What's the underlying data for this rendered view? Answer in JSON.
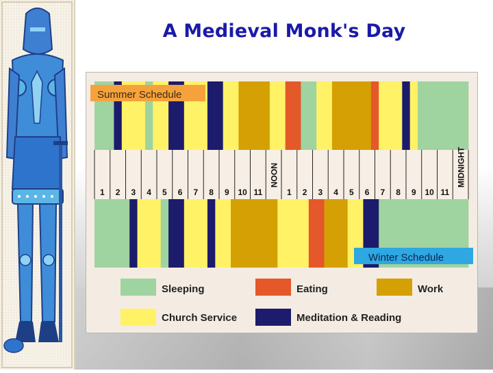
{
  "title": "A Medieval Monk's Day",
  "colors": {
    "sleeping": "#9fd3a0",
    "church": "#fff267",
    "work": "#d4a004",
    "eating": "#e4582a",
    "meditation": "#1d1b6b",
    "summer_label_bg": "#f6a23c",
    "winter_label_bg": "#2ea7e2"
  },
  "chart_data": {
    "type": "timeline",
    "summer_label": "Summer Schedule",
    "winter_label": "Winter Schedule",
    "hour_labels": [
      "1",
      "2",
      "3",
      "4",
      "5",
      "6",
      "7",
      "8",
      "9",
      "10",
      "11",
      "NOON",
      "1",
      "2",
      "3",
      "4",
      "5",
      "6",
      "7",
      "8",
      "9",
      "10",
      "11",
      "MIDNIGHT"
    ],
    "time_range": [
      0,
      24
    ],
    "summer": [
      {
        "start": 0.0,
        "end": 1.25,
        "activity": "sleeping"
      },
      {
        "start": 1.25,
        "end": 1.75,
        "activity": "meditation"
      },
      {
        "start": 1.75,
        "end": 3.25,
        "activity": "church"
      },
      {
        "start": 3.25,
        "end": 3.75,
        "activity": "sleeping"
      },
      {
        "start": 3.75,
        "end": 4.75,
        "activity": "church"
      },
      {
        "start": 4.75,
        "end": 5.75,
        "activity": "meditation"
      },
      {
        "start": 5.75,
        "end": 7.25,
        "activity": "church"
      },
      {
        "start": 7.25,
        "end": 8.25,
        "activity": "meditation"
      },
      {
        "start": 8.25,
        "end": 9.25,
        "activity": "church"
      },
      {
        "start": 9.25,
        "end": 11.25,
        "activity": "work"
      },
      {
        "start": 11.25,
        "end": 12.25,
        "activity": "church"
      },
      {
        "start": 12.25,
        "end": 13.25,
        "activity": "eating"
      },
      {
        "start": 13.25,
        "end": 14.25,
        "activity": "sleeping"
      },
      {
        "start": 14.25,
        "end": 15.25,
        "activity": "church"
      },
      {
        "start": 15.25,
        "end": 17.75,
        "activity": "work"
      },
      {
        "start": 17.75,
        "end": 18.25,
        "activity": "eating"
      },
      {
        "start": 18.25,
        "end": 19.75,
        "activity": "church"
      },
      {
        "start": 19.75,
        "end": 20.25,
        "activity": "meditation"
      },
      {
        "start": 20.25,
        "end": 20.75,
        "activity": "church"
      },
      {
        "start": 20.75,
        "end": 24.0,
        "activity": "sleeping"
      }
    ],
    "winter": [
      {
        "start": 0.0,
        "end": 2.25,
        "activity": "sleeping"
      },
      {
        "start": 2.25,
        "end": 2.75,
        "activity": "meditation"
      },
      {
        "start": 2.75,
        "end": 4.25,
        "activity": "church"
      },
      {
        "start": 4.25,
        "end": 4.75,
        "activity": "sleeping"
      },
      {
        "start": 4.75,
        "end": 5.75,
        "activity": "meditation"
      },
      {
        "start": 5.75,
        "end": 7.25,
        "activity": "church"
      },
      {
        "start": 7.25,
        "end": 7.75,
        "activity": "meditation"
      },
      {
        "start": 7.75,
        "end": 8.75,
        "activity": "church"
      },
      {
        "start": 8.75,
        "end": 11.75,
        "activity": "work"
      },
      {
        "start": 11.75,
        "end": 13.75,
        "activity": "church"
      },
      {
        "start": 13.75,
        "end": 14.75,
        "activity": "eating"
      },
      {
        "start": 14.75,
        "end": 16.25,
        "activity": "work"
      },
      {
        "start": 16.25,
        "end": 17.25,
        "activity": "church"
      },
      {
        "start": 17.25,
        "end": 18.25,
        "activity": "meditation"
      },
      {
        "start": 18.25,
        "end": 24.0,
        "activity": "sleeping"
      }
    ],
    "legend": [
      {
        "activity": "sleeping",
        "label": "Sleeping"
      },
      {
        "activity": "eating",
        "label": "Eating"
      },
      {
        "activity": "work",
        "label": "Work"
      },
      {
        "activity": "church",
        "label": "Church Service"
      },
      {
        "activity": "meditation",
        "label": "Meditation & Reading"
      }
    ]
  }
}
